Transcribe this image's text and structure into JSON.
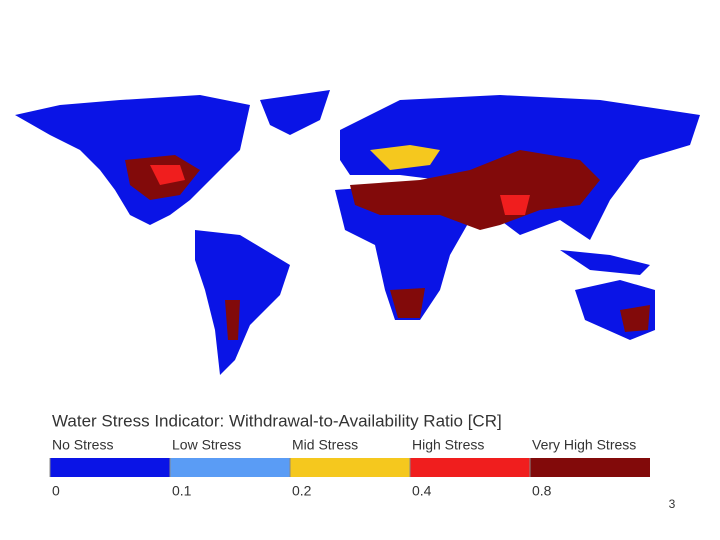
{
  "legend": {
    "title": "Water Stress Indicator: Withdrawal-to-Availability Ratio [CR]",
    "classes": [
      {
        "label": "No Stress",
        "color": "#0a14e6"
      },
      {
        "label": "Low Stress",
        "color": "#5a9cf5"
      },
      {
        "label": "Mid Stress",
        "color": "#f5c81e"
      },
      {
        "label": "High Stress",
        "color": "#f01e1e"
      },
      {
        "label": "Very High Stress",
        "color": "#820a0a"
      }
    ],
    "ticks": [
      0,
      0.1,
      0.2,
      0.4,
      0.8
    ]
  },
  "page_number": 3
}
